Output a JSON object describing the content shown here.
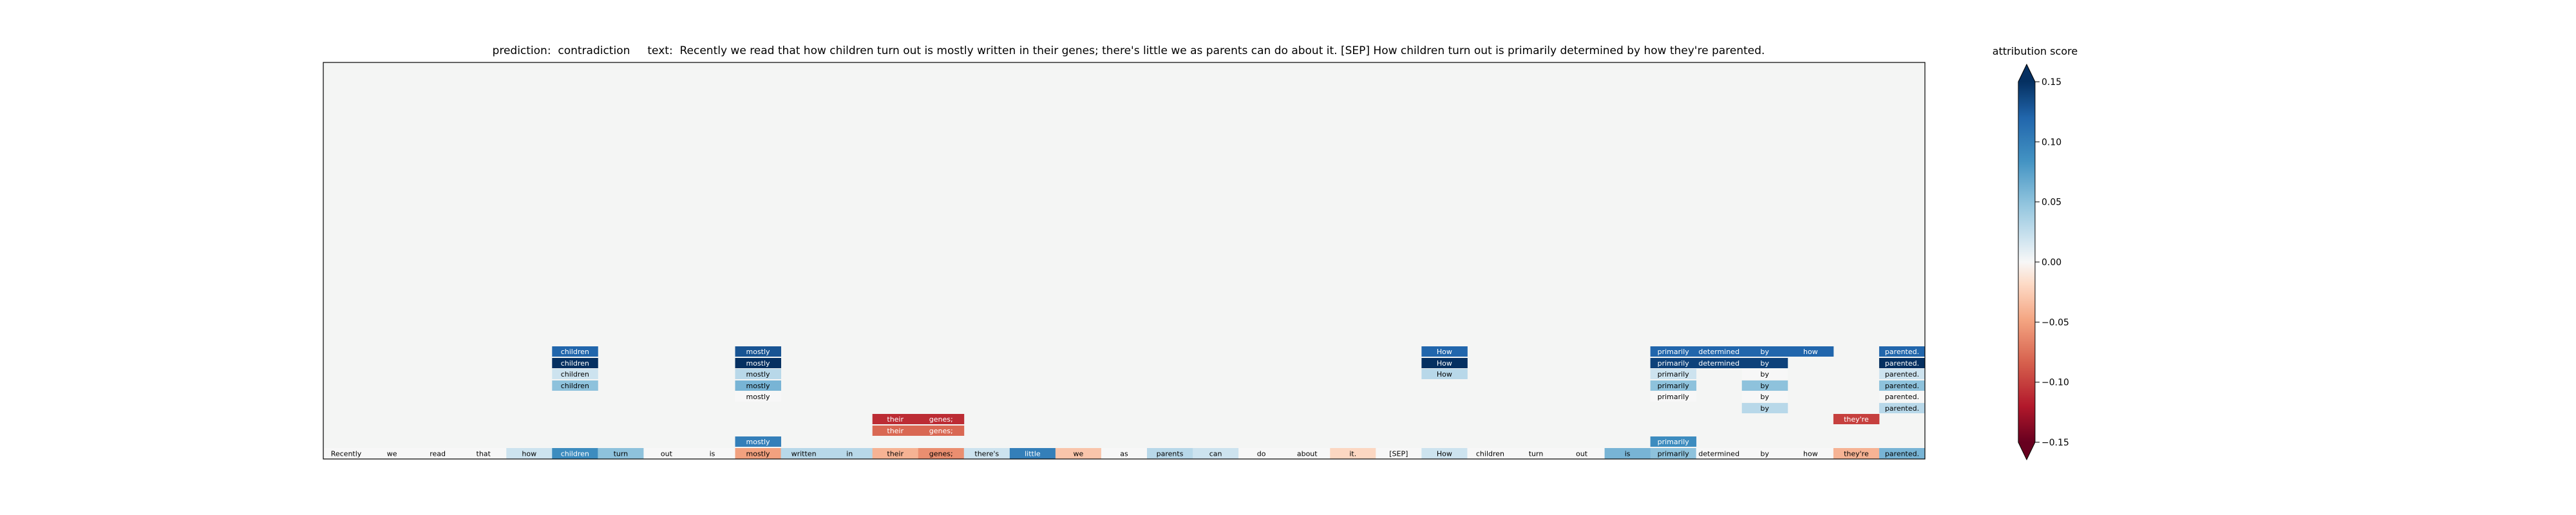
{
  "title": "prediction:  contradiction     text:  Recently we read that how children turn out is mostly written in their genes; there's little we as parents can do about it. [SEP] How children turn out is primarily determined by how they're parented.",
  "colorbar": {
    "label": "attribution score",
    "ticks": [
      "0.15",
      "0.10",
      "0.05",
      "0.00",
      "−0.05",
      "−0.10",
      "−0.15"
    ]
  },
  "chart_data": {
    "type": "heatmap",
    "title": "prediction:  contradiction     text:  Recently we read that how children turn out is mostly written in their genes; there's little we as parents can do about it. [SEP] How children turn out is primarily determined by how they're parented.",
    "colorbar_label": "attribution score",
    "colorbar_range": [
      -0.15,
      0.15
    ],
    "colorbar_extend": "both",
    "tokens": [
      {
        "word": "Recently",
        "score": 0.0
      },
      {
        "word": "we",
        "score": 0.0
      },
      {
        "word": "read",
        "score": 0.0
      },
      {
        "word": "that",
        "score": 0.0
      },
      {
        "word": "how",
        "score": 0.02
      },
      {
        "word": "children",
        "score": 0.09
      },
      {
        "word": "turn",
        "score": 0.05
      },
      {
        "word": "out",
        "score": 0.0
      },
      {
        "word": "is",
        "score": 0.0
      },
      {
        "word": "mostly",
        "score": -0.05
      },
      {
        "word": "written",
        "score": 0.03
      },
      {
        "word": "in",
        "score": 0.03
      },
      {
        "word": "their",
        "score": -0.04
      },
      {
        "word": "genes;",
        "score": -0.06
      },
      {
        "word": "there's",
        "score": 0.02
      },
      {
        "word": "little",
        "score": 0.1
      },
      {
        "word": "we",
        "score": -0.03
      },
      {
        "word": "as",
        "score": 0.0
      },
      {
        "word": "parents",
        "score": 0.03
      },
      {
        "word": "can",
        "score": 0.02
      },
      {
        "word": "do",
        "score": 0.0
      },
      {
        "word": "about",
        "score": 0.0
      },
      {
        "word": "it.",
        "score": -0.02
      },
      {
        "word": "[SEP]",
        "score": 0.0
      },
      {
        "word": "How",
        "score": 0.02
      },
      {
        "word": "children",
        "score": 0.0
      },
      {
        "word": "turn",
        "score": 0.0
      },
      {
        "word": "out",
        "score": 0.0
      },
      {
        "word": "is",
        "score": 0.06
      },
      {
        "word": "primarily",
        "score": 0.05
      },
      {
        "word": "determined",
        "score": 0.0
      },
      {
        "word": "by",
        "score": 0.0
      },
      {
        "word": "how",
        "score": 0.0
      },
      {
        "word": "they're",
        "score": -0.04
      },
      {
        "word": "parented.",
        "score": 0.06
      }
    ],
    "interaction_cells": [
      {
        "col": 5,
        "level": 0,
        "word": "children",
        "score": 0.12
      },
      {
        "col": 5,
        "level": 1,
        "word": "children",
        "score": 0.15
      },
      {
        "col": 5,
        "level": 2,
        "word": "children",
        "score": 0.02
      },
      {
        "col": 5,
        "level": 3,
        "word": "children",
        "score": 0.05
      },
      {
        "col": 9,
        "level": 0,
        "word": "mostly",
        "score": 0.13
      },
      {
        "col": 9,
        "level": 1,
        "word": "mostly",
        "score": 0.15
      },
      {
        "col": 9,
        "level": 2,
        "word": "mostly",
        "score": 0.03
      },
      {
        "col": 9,
        "level": 3,
        "word": "mostly",
        "score": 0.06
      },
      {
        "col": 9,
        "level": 4,
        "word": "mostly",
        "score": 0.0
      },
      {
        "col": 9,
        "level": 8,
        "word": "mostly",
        "score": 0.1
      },
      {
        "col": 12,
        "level": 6,
        "word": "their",
        "score": -0.11
      },
      {
        "col": 12,
        "level": 7,
        "word": "their",
        "score": -0.08
      },
      {
        "col": 13,
        "level": 6,
        "word": "genes;",
        "score": -0.11
      },
      {
        "col": 13,
        "level": 7,
        "word": "genes;",
        "score": -0.08
      },
      {
        "col": 24,
        "level": 0,
        "word": "How",
        "score": 0.12
      },
      {
        "col": 24,
        "level": 1,
        "word": "How",
        "score": 0.15
      },
      {
        "col": 24,
        "level": 2,
        "word": "How",
        "score": 0.03
      },
      {
        "col": 29,
        "level": 0,
        "word": "primarily",
        "score": 0.12
      },
      {
        "col": 29,
        "level": 1,
        "word": "primarily",
        "score": 0.14
      },
      {
        "col": 29,
        "level": 2,
        "word": "primarily",
        "score": 0.02
      },
      {
        "col": 29,
        "level": 3,
        "word": "primarily",
        "score": 0.05
      },
      {
        "col": 29,
        "level": 4,
        "word": "primarily",
        "score": 0.0
      },
      {
        "col": 29,
        "level": 8,
        "word": "primarily",
        "score": 0.09
      },
      {
        "col": 30,
        "level": 0,
        "word": "determined",
        "score": 0.12
      },
      {
        "col": 30,
        "level": 1,
        "word": "determined",
        "score": 0.14
      },
      {
        "col": 31,
        "level": 0,
        "word": "by",
        "score": 0.12
      },
      {
        "col": 31,
        "level": 1,
        "word": "by",
        "score": 0.14
      },
      {
        "col": 31,
        "level": 2,
        "word": "by",
        "score": 0.0
      },
      {
        "col": 31,
        "level": 3,
        "word": "by",
        "score": 0.05
      },
      {
        "col": 31,
        "level": 4,
        "word": "by",
        "score": 0.0
      },
      {
        "col": 31,
        "level": 5,
        "word": "by",
        "score": 0.03
      },
      {
        "col": 32,
        "level": 0,
        "word": "how",
        "score": 0.12
      },
      {
        "col": 33,
        "level": 6,
        "word": "they're",
        "score": -0.1
      },
      {
        "col": 34,
        "level": 0,
        "word": "parented.",
        "score": 0.12
      },
      {
        "col": 34,
        "level": 1,
        "word": "parented.",
        "score": 0.15
      },
      {
        "col": 34,
        "level": 2,
        "word": "parented.",
        "score": 0.02
      },
      {
        "col": 34,
        "level": 3,
        "word": "parented.",
        "score": 0.05
      },
      {
        "col": 34,
        "level": 4,
        "word": "parented.",
        "score": 0.0
      },
      {
        "col": 34,
        "level": 5,
        "word": "parented.",
        "score": 0.03
      }
    ]
  }
}
